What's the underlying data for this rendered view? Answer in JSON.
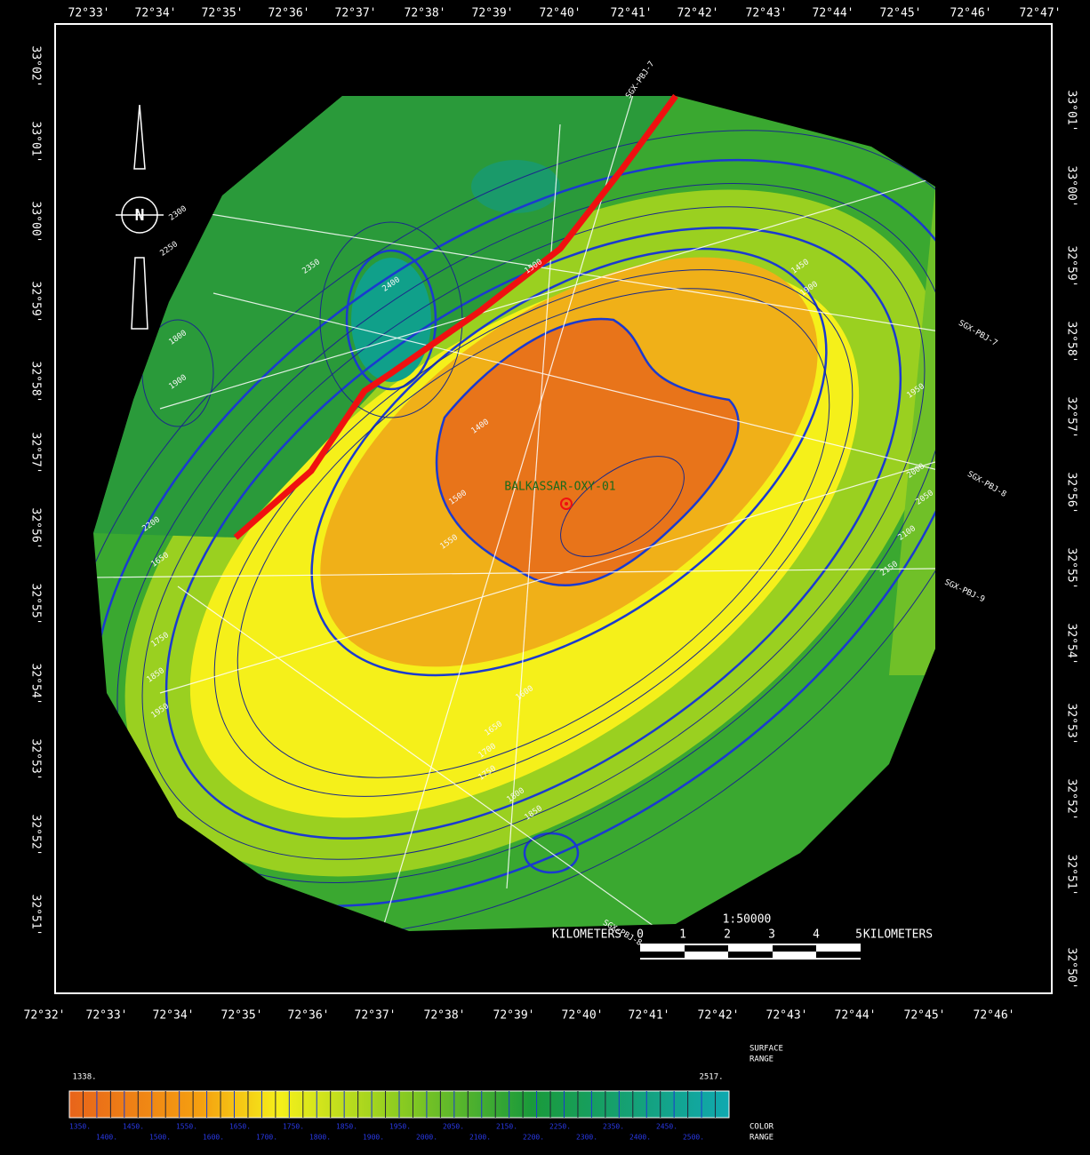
{
  "map": {
    "top_labels": [
      "72°33'",
      "72°34'",
      "72°35'",
      "72°36'",
      "72°37'",
      "72°38'",
      "72°39'",
      "72°40'",
      "72°41'",
      "72°42'",
      "72°43'",
      "72°44'",
      "72°45'",
      "72°46'",
      "72°47'"
    ],
    "bottom_labels": [
      "72°32'",
      "72°33'",
      "72°34'",
      "72°35'",
      "72°36'",
      "72°37'",
      "72°38'",
      "72°39'",
      "72°40'",
      "72°41'",
      "72°42'",
      "72°43'",
      "72°44'",
      "72°45'",
      "72°46'"
    ],
    "left_labels": [
      "33°02'",
      "33°01'",
      "33°00'",
      "32°59'",
      "32°58'",
      "32°57'",
      "32°56'",
      "32°55'",
      "32°54'",
      "32°53'",
      "32°52'",
      "32°51'"
    ],
    "right_labels": [
      "33°01'",
      "33°00'",
      "32°59'",
      "32°58'",
      "32°57'",
      "32°56'",
      "32°55'",
      "32°54'",
      "32°53'",
      "32°52'",
      "32°51'",
      "32°50'"
    ],
    "north": "N",
    "well": "BALKASSAR-OXY-01",
    "lines": [
      "SGX-PBJ-7",
      "SGX-PBJ-8",
      "SGX-PBJ-9",
      "SGX-PBJ-7",
      "SGX-PBJ-8"
    ],
    "contour_labels": [
      "1500",
      "1450",
      "1400",
      "1500",
      "1550",
      "1600",
      "1650",
      "1700",
      "1750",
      "1800",
      "1850",
      "1900",
      "1950",
      "2000",
      "2050",
      "2100",
      "2150",
      "2200",
      "2250",
      "2300",
      "2350",
      "2400",
      "1800",
      "1900",
      "1650",
      "1750",
      "1850",
      "1950"
    ],
    "scale": {
      "ratio": "1:50000",
      "unit_left": "KILOMETERS",
      "unit_right": "KILOMETERS",
      "ticks": [
        "0",
        "1",
        "2",
        "3",
        "4",
        "5"
      ]
    },
    "legend": {
      "min": "1338.",
      "max": "2517.",
      "surface": "SURFACE",
      "surface_range": "RANGE",
      "color": "COLOR",
      "color_range": "RANGE",
      "row1": [
        "1350.",
        "1450.",
        "1550.",
        "1650.",
        "1750.",
        "1850.",
        "1950.",
        "2050.",
        "2150.",
        "2250.",
        "2350.",
        "2450."
      ],
      "row2": [
        "1400.",
        "1500.",
        "1600.",
        "1700.",
        "1800.",
        "1900.",
        "2000.",
        "2100.",
        "2200.",
        "2300.",
        "2400.",
        "2500."
      ]
    }
  }
}
